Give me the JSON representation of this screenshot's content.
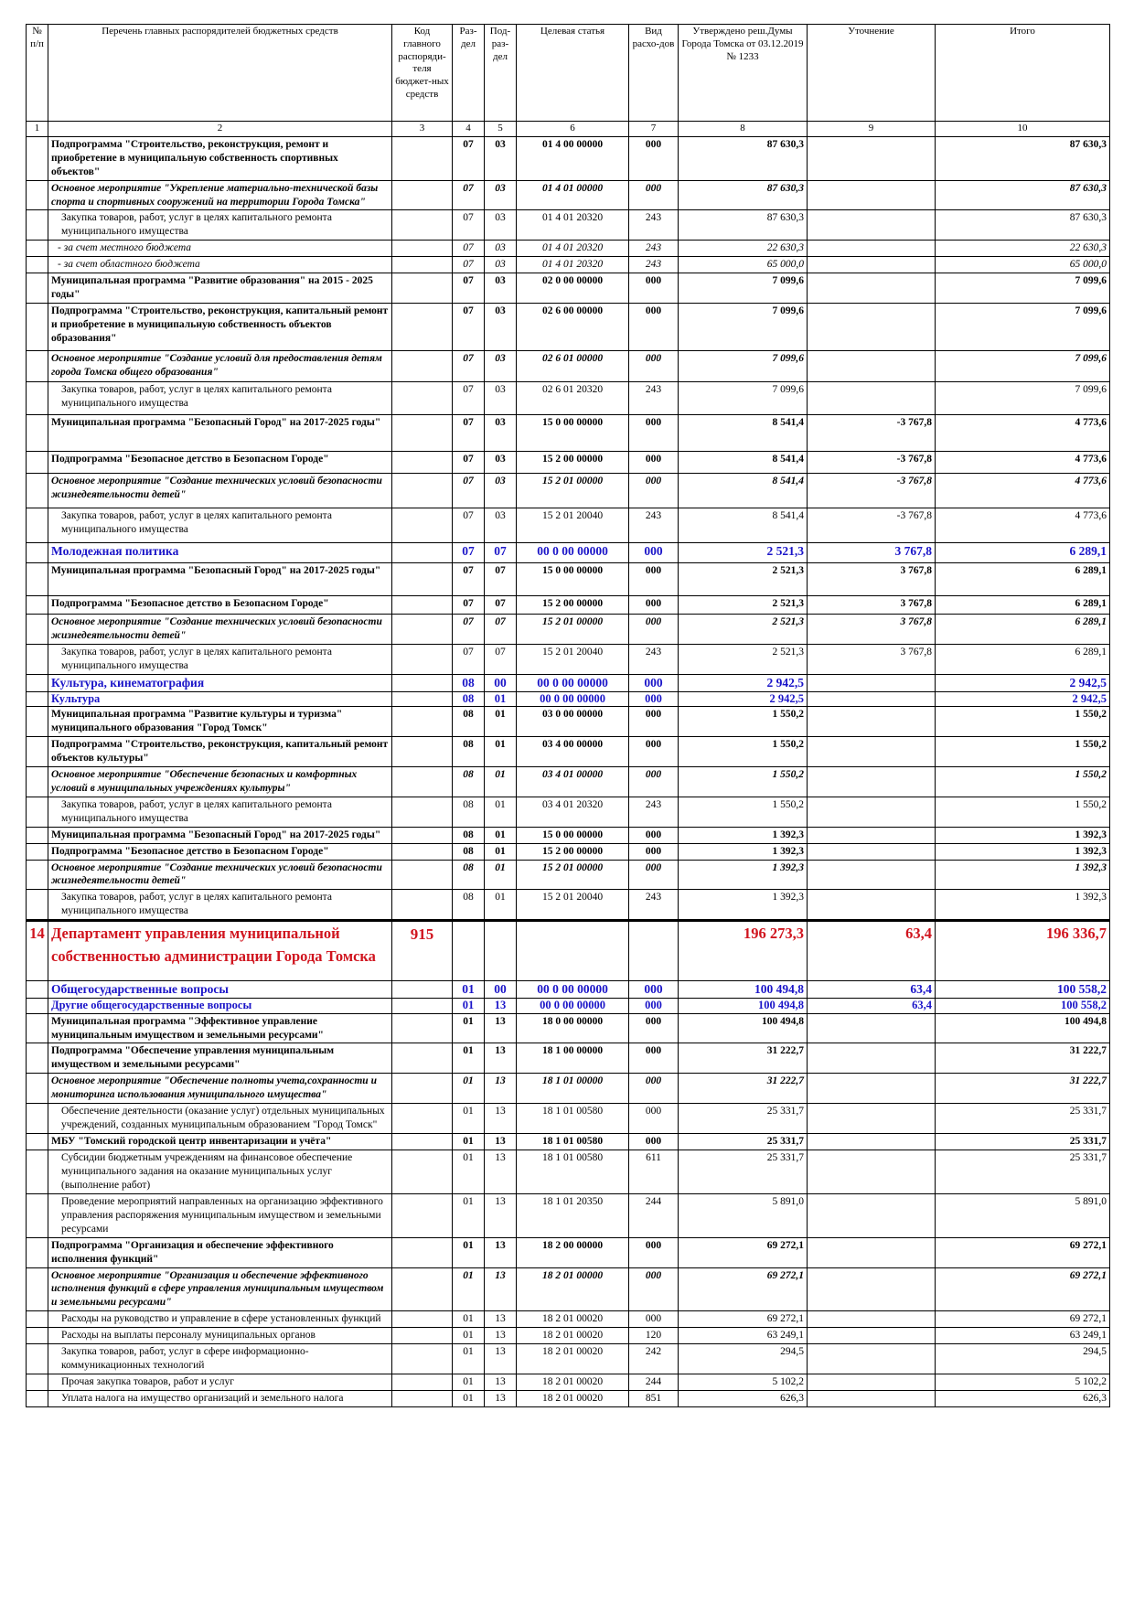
{
  "header": {
    "no": "№ п/п",
    "name": "Перечень главных распорядителей бюджетных средств",
    "code": "Код главного распоряди-теля бюджет-ных средств",
    "razdel": "Раз-дел",
    "podrazdel": "Под-раз-дел",
    "target": "Целевая статья",
    "vid": "Вид расхо-дов",
    "approved": "Утверждено реш.Думы Города Томска от 03.12.2019 № 1233",
    "change": "Уточнение",
    "total": "Итого"
  },
  "col_numbers": [
    "1",
    "2",
    "3",
    "4",
    "5",
    "6",
    "7",
    "8",
    "9",
    "10"
  ],
  "rows": [
    {
      "s": "b",
      "n": "",
      "name": "Подпрограмма \"Строительство, реконструкция, ремонт и приобретение в муниципальную собственность спортивных объектов\"",
      "code": "",
      "rz": "07",
      "pr": "03",
      "cs": "01 4 00 00000",
      "vr": "000",
      "a": "87 630,3",
      "u": "",
      "t": "87 630,3"
    },
    {
      "s": "bi",
      "n": "",
      "name": "Основное мероприятие \"Укрепление материально-технической базы спорта и спортивных сооружений на территории Города Томска\"",
      "code": "",
      "rz": "07",
      "pr": "03",
      "cs": "01 4 01 00000",
      "vr": "000",
      "a": "87 630,3",
      "u": "",
      "t": "87 630,3"
    },
    {
      "s": "n",
      "n": "",
      "name": "Закупка товаров, работ, услуг в целях капитального ремонта муниципального имущества",
      "code": "",
      "rz": "07",
      "pr": "03",
      "cs": "01 4 01 20320",
      "vr": "243",
      "a": "87 630,3",
      "u": "",
      "t": "87 630,3"
    },
    {
      "s": "sub",
      "n": "",
      "name": "- за счет местного бюджета",
      "code": "",
      "rz": "07",
      "pr": "03",
      "cs": "01 4 01 20320",
      "vr": "243",
      "a": "22 630,3",
      "u": "",
      "t": "22 630,3"
    },
    {
      "s": "sub",
      "n": "",
      "name": "- за счет областного бюджета",
      "code": "",
      "rz": "07",
      "pr": "03",
      "cs": "01 4 01 20320",
      "vr": "243",
      "a": "65 000,0",
      "u": "",
      "t": "65 000,0"
    },
    {
      "s": "b",
      "n": "",
      "name": "Муниципальная программа \"Развитие образования\" на 2015 - 2025 годы\"",
      "code": "",
      "rz": "07",
      "pr": "03",
      "cs": "02 0 00 00000",
      "vr": "000",
      "a": "7 099,6",
      "u": "",
      "t": "7 099,6"
    },
    {
      "s": "b",
      "h": 52,
      "n": "",
      "name": "Подпрограмма \"Строительство, реконструкция, капитальный ремонт и приобретение в муниципальную собственность объектов образования\"",
      "code": "",
      "rz": "07",
      "pr": "03",
      "cs": "02 6 00 00000",
      "vr": "000",
      "a": "7 099,6",
      "u": "",
      "t": "7 099,6"
    },
    {
      "s": "bi",
      "h": 34,
      "n": "",
      "name": "Основное мероприятие \"Создание условий для предоставления детям города Томска общего образования\"",
      "code": "",
      "rz": "07",
      "pr": "03",
      "cs": "02 6 01 00000",
      "vr": "000",
      "a": "7 099,6",
      "u": "",
      "t": "7 099,6"
    },
    {
      "s": "n",
      "h": 36,
      "n": "",
      "name": "Закупка товаров, работ, услуг в целях капитального ремонта муниципального имущества",
      "code": "",
      "rz": "07",
      "pr": "03",
      "cs": "02 6 01 20320",
      "vr": "243",
      "a": "7 099,6",
      "u": "",
      "t": "7 099,6"
    },
    {
      "s": "b",
      "h": 40,
      "n": "",
      "name": "Муниципальная программа \"Безопасный Город\" на 2017-2025 годы\"",
      "code": "",
      "rz": "07",
      "pr": "03",
      "cs": "15 0 00 00000",
      "vr": "000",
      "a": "8 541,4",
      "u": "-3 767,8",
      "t": "4 773,6"
    },
    {
      "s": "b",
      "h": 24,
      "n": "",
      "name": "Подпрограмма \"Безопасное детство в Безопасном Городе\"",
      "code": "",
      "rz": "07",
      "pr": "03",
      "cs": "15 2 00 00000",
      "vr": "000",
      "a": "8 541,4",
      "u": "-3 767,8",
      "t": "4 773,6"
    },
    {
      "s": "bi",
      "h": 38,
      "n": "",
      "name": "Основное мероприятие \"Создание технических условий безопасности жизнедеятельности детей\"",
      "code": "",
      "rz": "07",
      "pr": "03",
      "cs": "15 2 01 00000",
      "vr": "000",
      "a": "8 541,4",
      "u": "-3 767,8",
      "t": "4 773,6"
    },
    {
      "s": "n",
      "h": 38,
      "n": "",
      "name": "Закупка товаров, работ, услуг в целях капитального ремонта муниципального имущества",
      "code": "",
      "rz": "07",
      "pr": "03",
      "cs": "15 2 01 20040",
      "vr": "243",
      "a": "8 541,4",
      "u": "-3 767,8",
      "t": "4 773,6"
    },
    {
      "s": "sec",
      "h": 22,
      "n": "",
      "name": "Молодежная политика",
      "code": "",
      "rz": "07",
      "pr": "07",
      "cs": "00 0 00 00000",
      "vr": "000",
      "a": "2 521,3",
      "u": "3 767,8",
      "t": "6 289,1"
    },
    {
      "s": "b",
      "h": 36,
      "n": "",
      "name": "Муниципальная программа \"Безопасный Город\" на 2017-2025 годы\"",
      "code": "",
      "rz": "07",
      "pr": "07",
      "cs": "15 0 00 00000",
      "vr": "000",
      "a": "2 521,3",
      "u": "3 767,8",
      "t": "6 289,1"
    },
    {
      "s": "b",
      "h": 20,
      "n": "",
      "name": "Подпрограмма \"Безопасное детство в Безопасном Городе\"",
      "code": "",
      "rz": "07",
      "pr": "07",
      "cs": "15 2 00 00000",
      "vr": "000",
      "a": "2 521,3",
      "u": "3 767,8",
      "t": "6 289,1"
    },
    {
      "s": "bi",
      "n": "",
      "name": "Основное мероприятие \"Создание технических условий безопасности жизнедеятельности детей\"",
      "code": "",
      "rz": "07",
      "pr": "07",
      "cs": "15 2 01 00000",
      "vr": "000",
      "a": "2 521,3",
      "u": "3 767,8",
      "t": "6 289,1"
    },
    {
      "s": "n",
      "n": "",
      "name": "Закупка товаров, работ, услуг в целях капитального ремонта муниципального имущества",
      "code": "",
      "rz": "07",
      "pr": "07",
      "cs": "15 2 01 20040",
      "vr": "243",
      "a": "2 521,3",
      "u": "3 767,8",
      "t": "6 289,1"
    },
    {
      "s": "sec",
      "n": "",
      "name": "Культура, кинематография",
      "code": "",
      "rz": "08",
      "pr": "00",
      "cs": "00 0 00 00000",
      "vr": "000",
      "a": "2 942,5",
      "u": "",
      "t": "2 942,5"
    },
    {
      "s": "sec2",
      "n": "",
      "name": "Культура",
      "code": "",
      "rz": "08",
      "pr": "01",
      "cs": "00 0 00 00000",
      "vr": "000",
      "a": "2 942,5",
      "u": "",
      "t": "2 942,5"
    },
    {
      "s": "b",
      "n": "",
      "name": "Муниципальная программа \"Развитие культуры и туризма\" муниципального образования \"Город Томск\"",
      "code": "",
      "rz": "08",
      "pr": "01",
      "cs": "03 0 00 00000",
      "vr": "000",
      "a": "1 550,2",
      "u": "",
      "t": "1 550,2"
    },
    {
      "s": "b",
      "n": "",
      "name": "Подпрограмма \"Строительство, реконструкция, капитальный ремонт объектов культуры\"",
      "code": "",
      "rz": "08",
      "pr": "01",
      "cs": "03 4 00 00000",
      "vr": "000",
      "a": "1 550,2",
      "u": "",
      "t": "1 550,2"
    },
    {
      "s": "bi",
      "n": "",
      "name": "Основное мероприятие \"Обеспечение безопасных и комфортных условий в муниципальных учреждениях культуры\"",
      "code": "",
      "rz": "08",
      "pr": "01",
      "cs": "03 4 01 00000",
      "vr": "000",
      "a": "1 550,2",
      "u": "",
      "t": "1 550,2"
    },
    {
      "s": "n",
      "n": "",
      "name": "Закупка товаров, работ, услуг в целях капитального ремонта муниципального имущества",
      "code": "",
      "rz": "08",
      "pr": "01",
      "cs": "03 4 01 20320",
      "vr": "243",
      "a": "1 550,2",
      "u": "",
      "t": "1 550,2"
    },
    {
      "s": "b",
      "n": "",
      "name": "Муниципальная программа \"Безопасный Город\" на 2017-2025 годы\"",
      "code": "",
      "rz": "08",
      "pr": "01",
      "cs": "15 0 00 00000",
      "vr": "000",
      "a": "1 392,3",
      "u": "",
      "t": "1 392,3"
    },
    {
      "s": "b",
      "n": "",
      "name": "Подпрограмма \"Безопасное детство в Безопасном Городе\"",
      "code": "",
      "rz": "08",
      "pr": "01",
      "cs": "15 2 00 00000",
      "vr": "000",
      "a": "1 392,3",
      "u": "",
      "t": "1 392,3"
    },
    {
      "s": "bi",
      "n": "",
      "name": "Основное мероприятие \"Создание технических условий безопасности жизнедеятельности детей\"",
      "code": "",
      "rz": "08",
      "pr": "01",
      "cs": "15 2 01 00000",
      "vr": "000",
      "a": "1 392,3",
      "u": "",
      "t": "1 392,3"
    },
    {
      "s": "n",
      "n": "",
      "name": "Закупка товаров, работ, услуг в целях капитального ремонта муниципального имущества",
      "code": "",
      "rz": "08",
      "pr": "01",
      "cs": "15 2 01 20040",
      "vr": "243",
      "a": "1 392,3",
      "u": "",
      "t": "1 392,3"
    },
    {
      "s": "dept",
      "h": 66,
      "n": "14",
      "name": "Департамент управления муниципальной собственностью администрации Города Томска",
      "code": "915",
      "rz": "",
      "pr": "",
      "cs": "",
      "vr": "",
      "a": "196 273,3",
      "u": "63,4",
      "t": "196 336,7"
    },
    {
      "s": "sec",
      "n": "",
      "name": "Общегосударственные вопросы",
      "code": "",
      "rz": "01",
      "pr": "00",
      "cs": "00 0 00 00000",
      "vr": "000",
      "a": "100 494,8",
      "u": "63,4",
      "t": "100 558,2"
    },
    {
      "s": "sec2",
      "n": "",
      "name": "Другие общегосударственные вопросы",
      "code": "",
      "rz": "01",
      "pr": "13",
      "cs": "00 0 00 00000",
      "vr": "000",
      "a": "100 494,8",
      "u": "63,4",
      "t": "100 558,2"
    },
    {
      "s": "b",
      "n": "",
      "name": "Муниципальная программа \"Эффективное управление муниципальным имуществом и земельными ресурсами\"",
      "code": "",
      "rz": "01",
      "pr": "13",
      "cs": "18 0 00 00000",
      "vr": "000",
      "a": "100 494,8",
      "u": "",
      "t": "100 494,8"
    },
    {
      "s": "b",
      "n": "",
      "name": "Подпрограмма \"Обеспечение управления муниципальным имуществом и земельными ресурсами\"",
      "code": "",
      "rz": "01",
      "pr": "13",
      "cs": "18 1 00 00000",
      "vr": "000",
      "a": "31 222,7",
      "u": "",
      "t": "31 222,7"
    },
    {
      "s": "bi",
      "n": "",
      "name": "Основное мероприятие \"Обеспечение полноты учета,сохранности и мониторинга использования муниципального имущества\"",
      "code": "",
      "rz": "01",
      "pr": "13",
      "cs": "18 1 01 00000",
      "vr": "000",
      "a": "31 222,7",
      "u": "",
      "t": "31 222,7"
    },
    {
      "s": "n",
      "n": "",
      "name": "Обеспечение деятельности (оказание услуг) отдельных муниципальных учреждений, созданных муниципальным образованием \"Город Томск\"",
      "code": "",
      "rz": "01",
      "pr": "13",
      "cs": "18 1 01 00580",
      "vr": "000",
      "a": "25 331,7",
      "u": "",
      "t": "25 331,7"
    },
    {
      "s": "b",
      "n": "",
      "name": "МБУ \"Томский городской центр инвентаризации и учёта\"",
      "code": "",
      "rz": "01",
      "pr": "13",
      "cs": "18 1 01 00580",
      "vr": "000",
      "a": "25 331,7",
      "u": "",
      "t": "25 331,7"
    },
    {
      "s": "n",
      "n": "",
      "name": "Субсидии бюджетным учреждениям на финансовое обеспечение муниципального задания на оказание муниципальных услуг (выполнение работ)",
      "code": "",
      "rz": "01",
      "pr": "13",
      "cs": "18 1 01 00580",
      "vr": "611",
      "a": "25 331,7",
      "u": "",
      "t": "25 331,7"
    },
    {
      "s": "n",
      "n": "",
      "name": "Проведение мероприятий направленных на организацию эффективного управления распоряжения муниципальным имуществом и земельными ресурсами",
      "code": "",
      "rz": "01",
      "pr": "13",
      "cs": "18 1 01 20350",
      "vr": "244",
      "a": "5 891,0",
      "u": "",
      "t": "5 891,0"
    },
    {
      "s": "b",
      "n": "",
      "name": "Подпрограмма \"Организация и обеспечение эффективного исполнения функций\"",
      "code": "",
      "rz": "01",
      "pr": "13",
      "cs": "18 2 00 00000",
      "vr": "000",
      "a": "69 272,1",
      "u": "",
      "t": "69 272,1"
    },
    {
      "s": "bi",
      "n": "",
      "name": "Основное мероприятие \"Организация и обеспечение эффективного исполнения функций в сфере управления муниципальным имуществом и земельными ресурсами\"",
      "code": "",
      "rz": "01",
      "pr": "13",
      "cs": "18 2 01 00000",
      "vr": "000",
      "a": "69 272,1",
      "u": "",
      "t": "69 272,1"
    },
    {
      "s": "n",
      "n": "",
      "name": "Расходы на руководство и управление в сфере установленных функций",
      "code": "",
      "rz": "01",
      "pr": "13",
      "cs": "18 2 01 00020",
      "vr": "000",
      "a": "69 272,1",
      "u": "",
      "t": "69 272,1"
    },
    {
      "s": "n",
      "n": "",
      "name": "Расходы на выплаты персоналу муниципальных органов",
      "code": "",
      "rz": "01",
      "pr": "13",
      "cs": "18 2 01 00020",
      "vr": "120",
      "a": "63 249,1",
      "u": "",
      "t": "63 249,1"
    },
    {
      "s": "n",
      "n": "",
      "name": "Закупка товаров, работ, услуг в сфере информационно-коммуникационных технологий",
      "code": "",
      "rz": "01",
      "pr": "13",
      "cs": "18 2 01 00020",
      "vr": "242",
      "a": "294,5",
      "u": "",
      "t": "294,5"
    },
    {
      "s": "n",
      "n": "",
      "name": "Прочая закупка товаров, работ и услуг",
      "code": "",
      "rz": "01",
      "pr": "13",
      "cs": "18 2 01 00020",
      "vr": "244",
      "a": "5 102,2",
      "u": "",
      "t": "5 102,2"
    },
    {
      "s": "n",
      "n": "",
      "name": "Уплата налога на имущество организаций и земельного налога",
      "code": "",
      "rz": "01",
      "pr": "13",
      "cs": "18 2 01 00020",
      "vr": "851",
      "a": "626,3",
      "u": "",
      "t": "626,3"
    }
  ]
}
